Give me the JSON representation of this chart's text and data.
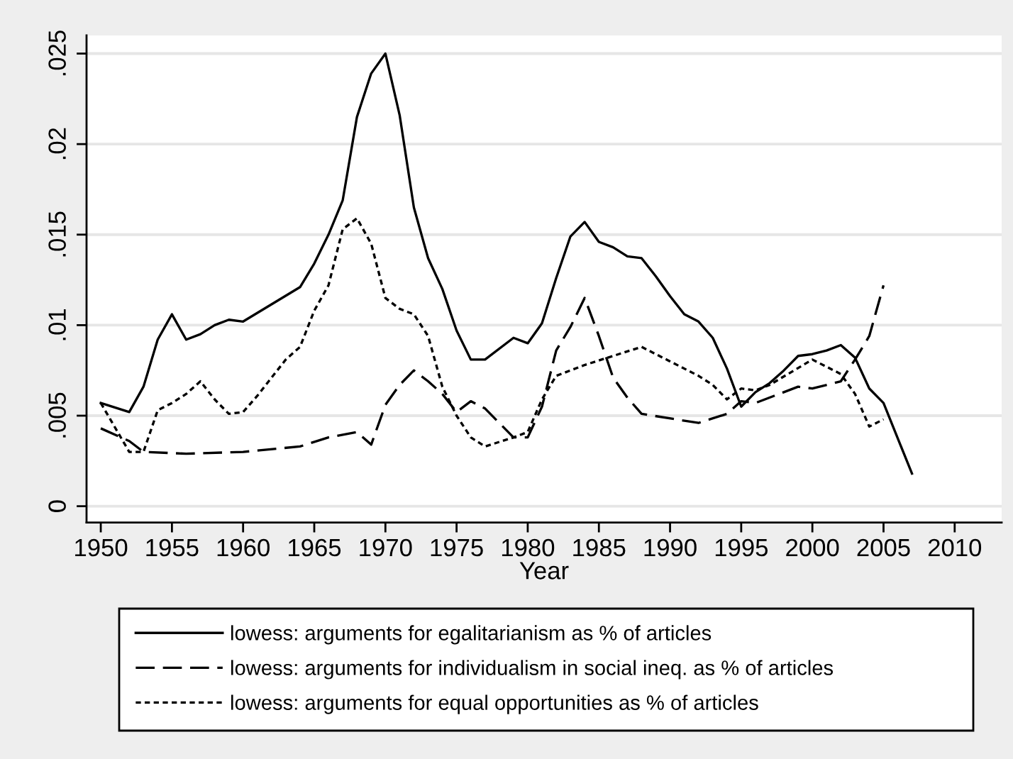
{
  "chart_data": {
    "type": "line",
    "xlabel": "Year",
    "xlim": [
      1949,
      2013.3
    ],
    "xticks": [
      1950,
      1955,
      1960,
      1965,
      1970,
      1975,
      1980,
      1985,
      1990,
      1995,
      2000,
      2005,
      2010
    ],
    "ylim": [
      -0.0009,
      0.026
    ],
    "yticks": [
      0,
      {
        "value": 0.005,
        "label": ".005"
      },
      {
        "value": 0.01,
        "label": ".01"
      },
      {
        "value": 0.015,
        "label": ".015"
      },
      {
        "value": 0.02,
        "label": ".02"
      },
      {
        "value": 0.025,
        "label": ".025"
      }
    ],
    "grid": "y",
    "legend": "bottom",
    "marker": "none",
    "series": [
      {
        "name": "lowess: arguments for egalitarianism as % of articles",
        "color": "#000000",
        "line_style": "solid",
        "x": [
          1950,
          1952,
          1953,
          1954,
          1955,
          1956,
          1957,
          1958,
          1959,
          1960,
          1964,
          1965,
          1966,
          1967,
          1968,
          1969,
          1970,
          1971,
          1972,
          1973,
          1974,
          1975,
          1976,
          1977,
          1979,
          1980,
          1981,
          1982,
          1983,
          1984,
          1985,
          1986,
          1987,
          1988,
          1989,
          1990,
          1991,
          1992,
          1993,
          1994,
          1995,
          1996,
          1997,
          1998,
          1999,
          2000,
          2001,
          2002,
          2003,
          2004,
          2005,
          2007
        ],
        "values": [
          0.0057,
          0.0052,
          0.0066,
          0.0092,
          0.0106,
          0.0092,
          0.0095,
          0.01,
          0.0103,
          0.0102,
          0.0121,
          0.0134,
          0.015,
          0.0169,
          0.0215,
          0.0239,
          0.025,
          0.0216,
          0.0165,
          0.0137,
          0.012,
          0.0097,
          0.0081,
          0.0081,
          0.0093,
          0.009,
          0.0101,
          0.0126,
          0.0149,
          0.0157,
          0.0146,
          0.0143,
          0.0138,
          0.0137,
          0.0127,
          0.0116,
          0.0106,
          0.0102,
          0.0093,
          0.0076,
          0.0055,
          0.0063,
          0.0068,
          0.0075,
          0.0083,
          0.0084,
          0.0086,
          0.0089,
          0.0082,
          0.0065,
          0.0057,
          0.0018
        ]
      },
      {
        "name": "lowess: arguments for individualism in social ineq. as % of articles",
        "color": "#000000",
        "line_style": "dashed",
        "x": [
          1950,
          1952,
          1953,
          1956,
          1960,
          1964,
          1966,
          1968,
          1969,
          1970,
          1971,
          1972,
          1973,
          1974,
          1975,
          1976,
          1977,
          1979,
          1980,
          1981,
          1982,
          1983,
          1984,
          1985,
          1986,
          1987,
          1988,
          1992,
          1994,
          1995,
          1996,
          1999,
          2000,
          2002,
          2003,
          2004,
          2005
        ],
        "values": [
          0.0043,
          0.0036,
          0.003,
          0.0029,
          0.003,
          0.0033,
          0.0038,
          0.0041,
          0.0034,
          0.0056,
          0.0067,
          0.0075,
          0.0069,
          0.0062,
          0.0052,
          0.0058,
          0.0054,
          0.0038,
          0.0038,
          0.0055,
          0.0086,
          0.0099,
          0.0115,
          0.0094,
          0.0071,
          0.006,
          0.0051,
          0.0046,
          0.0051,
          0.0058,
          0.0057,
          0.0066,
          0.0065,
          0.0069,
          0.0081,
          0.0094,
          0.0122
        ]
      },
      {
        "name": "lowess: arguments for equal opportunities as % of articles",
        "color": "#000000",
        "line_style": "dotted",
        "x": [
          1950,
          1952,
          1953,
          1954,
          1955,
          1956,
          1957,
          1958,
          1959,
          1960,
          1961,
          1962,
          1963,
          1964,
          1965,
          1966,
          1967,
          1968,
          1969,
          1970,
          1971,
          1972,
          1973,
          1974,
          1975,
          1976,
          1977,
          1979,
          1980,
          1981,
          1982,
          1984,
          1986,
          1988,
          1990,
          1992,
          1993,
          1994,
          1995,
          1996,
          1997,
          2000,
          2002,
          2003,
          2004,
          2005
        ],
        "values": [
          0.0057,
          0.003,
          0.003,
          0.0053,
          0.0057,
          0.0062,
          0.0069,
          0.0059,
          0.0051,
          0.0052,
          0.0061,
          0.0071,
          0.0081,
          0.0088,
          0.0108,
          0.0122,
          0.0153,
          0.0159,
          0.0145,
          0.0115,
          0.0109,
          0.0106,
          0.0094,
          0.0066,
          0.005,
          0.0038,
          0.0033,
          0.0038,
          0.0041,
          0.0059,
          0.0072,
          0.0078,
          0.0083,
          0.0088,
          0.008,
          0.0072,
          0.0067,
          0.0059,
          0.0065,
          0.0064,
          0.0067,
          0.0081,
          0.0073,
          0.0062,
          0.0044,
          0.0048
        ]
      }
    ]
  }
}
